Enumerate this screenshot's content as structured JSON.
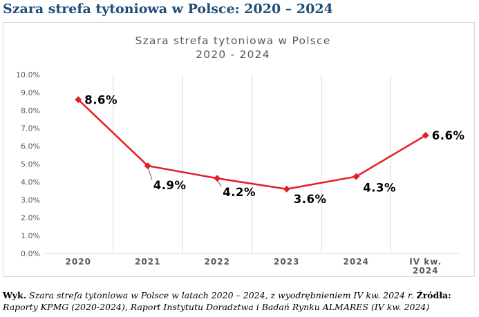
{
  "heading": "Szara strefa tytoniowa w Polsce: 2020 – 2024",
  "caption": {
    "lead": "Wyk.",
    "text": " Szara strefa tytoniowa w Polsce w latach 2020 – 2024, z wyodrębnieniem IV kw. 2024 r. ",
    "sources_label": "Źródła:",
    "sources": " Raporty KPMG (2020-2024), Raport Instytutu Doradztwa i Badań Rynku ALMARES (IV kw. 2024)"
  },
  "chart_data": {
    "type": "line",
    "title_lines": [
      "Szara strefa tytoniowa w Polsce",
      "2020 - 2024"
    ],
    "categories": [
      "2020",
      "2021",
      "2022",
      "2023",
      "2024",
      "IV kw. 2024"
    ],
    "category_label_lines": [
      [
        "2020"
      ],
      [
        "2021"
      ],
      [
        "2022"
      ],
      [
        "2023"
      ],
      [
        "2024"
      ],
      [
        "IV kw.",
        "2024"
      ]
    ],
    "values": [
      8.6,
      4.9,
      4.2,
      3.6,
      4.3,
      6.6
    ],
    "data_labels": [
      "8.6%",
      "4.9%",
      "4.2%",
      "3.6%",
      "4.3%",
      "6.6%"
    ],
    "y_ticks": [
      "0.0%",
      "1.0%",
      "2.0%",
      "3.0%",
      "4.0%",
      "5.0%",
      "6.0%",
      "7.0%",
      "8.0%",
      "9.0%",
      "10.0%"
    ],
    "ylim": [
      0,
      10
    ],
    "grid": "vertical",
    "line_color": "#e31e24",
    "xlabel": "",
    "ylabel": ""
  }
}
